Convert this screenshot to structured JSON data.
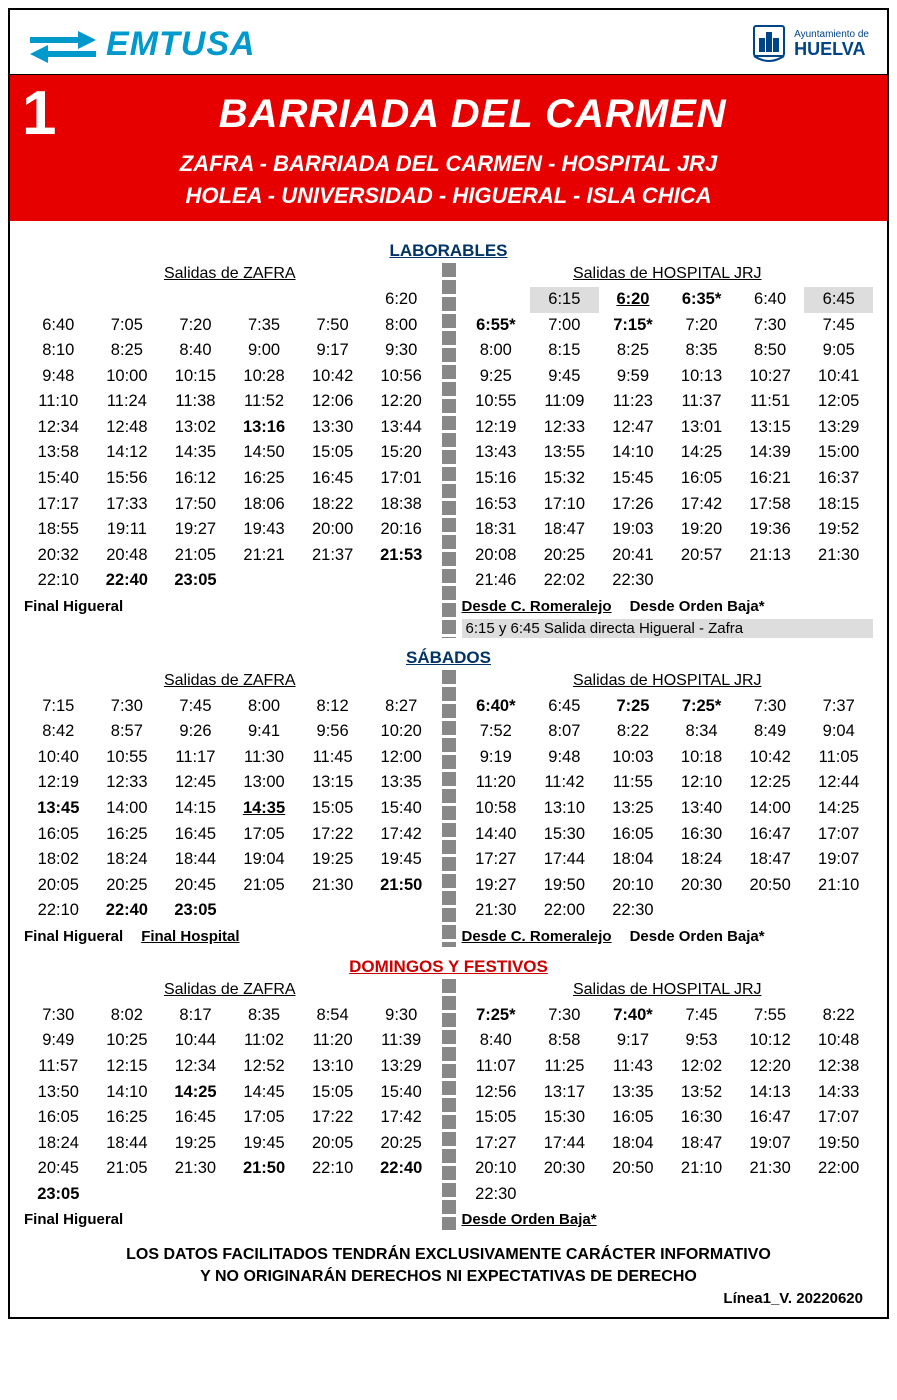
{
  "colors": {
    "brand_blue": "#0099cc",
    "red": "#e60000",
    "dark_blue": "#003366",
    "dark_red": "#cc0000",
    "highlight_gray": "#dddddd",
    "huelva_blue": "#004488"
  },
  "header": {
    "emtusa": "EMTUSA",
    "huelva_small": "Ayuntamiento de",
    "huelva_big": "HUELVA"
  },
  "redbar": {
    "line_number": "1",
    "title": "BARRIADA DEL CARMEN",
    "route1": "ZAFRA - BARRIADA DEL CARMEN - HOSPITAL JRJ",
    "route2": "HOLEA - UNIVERSIDAD - HIGUERAL - ISLA CHICA"
  },
  "sections": {
    "laborables": {
      "title": "LABORABLES",
      "left_head": "Salidas de ZAFRA",
      "right_head": "Salidas de HOSPITAL JRJ",
      "left_times": [
        {
          "t": ""
        },
        {
          "t": ""
        },
        {
          "t": ""
        },
        {
          "t": ""
        },
        {
          "t": ""
        },
        {
          "t": "6:20"
        },
        {
          "t": "6:40"
        },
        {
          "t": "7:05"
        },
        {
          "t": "7:20"
        },
        {
          "t": "7:35"
        },
        {
          "t": "7:50"
        },
        {
          "t": "8:00"
        },
        {
          "t": "8:10"
        },
        {
          "t": "8:25"
        },
        {
          "t": "8:40"
        },
        {
          "t": "9:00"
        },
        {
          "t": "9:17"
        },
        {
          "t": "9:30"
        },
        {
          "t": "9:48"
        },
        {
          "t": "10:00"
        },
        {
          "t": "10:15"
        },
        {
          "t": "10:28"
        },
        {
          "t": "10:42"
        },
        {
          "t": "10:56"
        },
        {
          "t": "11:10"
        },
        {
          "t": "11:24"
        },
        {
          "t": "11:38"
        },
        {
          "t": "11:52"
        },
        {
          "t": "12:06"
        },
        {
          "t": "12:20"
        },
        {
          "t": "12:34"
        },
        {
          "t": "12:48"
        },
        {
          "t": "13:02"
        },
        {
          "t": "13:16",
          "b": true
        },
        {
          "t": "13:30"
        },
        {
          "t": "13:44"
        },
        {
          "t": "13:58"
        },
        {
          "t": "14:12"
        },
        {
          "t": "14:35"
        },
        {
          "t": "14:50"
        },
        {
          "t": "15:05"
        },
        {
          "t": "15:20"
        },
        {
          "t": "15:40"
        },
        {
          "t": "15:56"
        },
        {
          "t": "16:12"
        },
        {
          "t": "16:25"
        },
        {
          "t": "16:45"
        },
        {
          "t": "17:01"
        },
        {
          "t": "17:17"
        },
        {
          "t": "17:33"
        },
        {
          "t": "17:50"
        },
        {
          "t": "18:06"
        },
        {
          "t": "18:22"
        },
        {
          "t": "18:38"
        },
        {
          "t": "18:55"
        },
        {
          "t": "19:11"
        },
        {
          "t": "19:27"
        },
        {
          "t": "19:43"
        },
        {
          "t": "20:00"
        },
        {
          "t": "20:16"
        },
        {
          "t": "20:32"
        },
        {
          "t": "20:48"
        },
        {
          "t": "21:05"
        },
        {
          "t": "21:21"
        },
        {
          "t": "21:37"
        },
        {
          "t": "21:53",
          "b": true
        },
        {
          "t": "22:10"
        },
        {
          "t": "22:40",
          "b": true
        },
        {
          "t": "23:05",
          "b": true
        },
        {
          "t": ""
        },
        {
          "t": ""
        },
        {
          "t": ""
        }
      ],
      "left_notes": [
        {
          "text": "Final Higueral",
          "u": false,
          "b": true
        }
      ],
      "right_times": [
        {
          "t": ""
        },
        {
          "t": "6:15",
          "hl": true
        },
        {
          "t": "6:20",
          "b": true,
          "u": true
        },
        {
          "t": "6:35*",
          "b": true
        },
        {
          "t": "6:40"
        },
        {
          "t": "6:45",
          "hl": true
        },
        {
          "t": "6:55*",
          "b": true
        },
        {
          "t": "7:00"
        },
        {
          "t": "7:15*",
          "b": true
        },
        {
          "t": "7:20"
        },
        {
          "t": "7:30"
        },
        {
          "t": "7:45"
        },
        {
          "t": "8:00"
        },
        {
          "t": "8:15"
        },
        {
          "t": "8:25"
        },
        {
          "t": "8:35"
        },
        {
          "t": "8:50"
        },
        {
          "t": "9:05"
        },
        {
          "t": "9:25"
        },
        {
          "t": "9:45"
        },
        {
          "t": "9:59"
        },
        {
          "t": "10:13"
        },
        {
          "t": "10:27"
        },
        {
          "t": "10:41"
        },
        {
          "t": "10:55"
        },
        {
          "t": "11:09"
        },
        {
          "t": "11:23"
        },
        {
          "t": "11:37"
        },
        {
          "t": "11:51"
        },
        {
          "t": "12:05"
        },
        {
          "t": "12:19"
        },
        {
          "t": "12:33"
        },
        {
          "t": "12:47"
        },
        {
          "t": "13:01"
        },
        {
          "t": "13:15"
        },
        {
          "t": "13:29"
        },
        {
          "t": "13:43"
        },
        {
          "t": "13:55"
        },
        {
          "t": "14:10"
        },
        {
          "t": "14:25"
        },
        {
          "t": "14:39"
        },
        {
          "t": "15:00"
        },
        {
          "t": "15:16"
        },
        {
          "t": "15:32"
        },
        {
          "t": "15:45"
        },
        {
          "t": "16:05"
        },
        {
          "t": "16:21"
        },
        {
          "t": "16:37"
        },
        {
          "t": "16:53"
        },
        {
          "t": "17:10"
        },
        {
          "t": "17:26"
        },
        {
          "t": "17:42"
        },
        {
          "t": "17:58"
        },
        {
          "t": "18:15"
        },
        {
          "t": "18:31"
        },
        {
          "t": "18:47"
        },
        {
          "t": "19:03"
        },
        {
          "t": "19:20"
        },
        {
          "t": "19:36"
        },
        {
          "t": "19:52"
        },
        {
          "t": "20:08"
        },
        {
          "t": "20:25"
        },
        {
          "t": "20:41"
        },
        {
          "t": "20:57"
        },
        {
          "t": "21:13"
        },
        {
          "t": "21:30"
        },
        {
          "t": "21:46"
        },
        {
          "t": "22:02"
        },
        {
          "t": "22:30"
        },
        {
          "t": ""
        },
        {
          "t": ""
        },
        {
          "t": ""
        }
      ],
      "right_notes_row": [
        {
          "text": "Desde C. Romeralejo",
          "u": true,
          "b": true
        },
        {
          "text": "Desde Orden Baja*",
          "b": true
        }
      ],
      "right_noteblock": "6:15 y 6:45 Salida directa Higueral - Zafra"
    },
    "sabados": {
      "title": "SÁBADOS",
      "left_head": "Salidas de ZAFRA",
      "right_head": "Salidas de HOSPITAL JRJ",
      "left_times": [
        {
          "t": "7:15"
        },
        {
          "t": "7:30"
        },
        {
          "t": "7:45"
        },
        {
          "t": "8:00"
        },
        {
          "t": "8:12"
        },
        {
          "t": "8:27"
        },
        {
          "t": "8:42"
        },
        {
          "t": "8:57"
        },
        {
          "t": "9:26"
        },
        {
          "t": "9:41"
        },
        {
          "t": "9:56"
        },
        {
          "t": "10:20"
        },
        {
          "t": "10:40"
        },
        {
          "t": "10:55"
        },
        {
          "t": "11:17"
        },
        {
          "t": "11:30"
        },
        {
          "t": "11:45"
        },
        {
          "t": "12:00"
        },
        {
          "t": "12:19"
        },
        {
          "t": "12:33"
        },
        {
          "t": "12:45"
        },
        {
          "t": "13:00"
        },
        {
          "t": "13:15"
        },
        {
          "t": "13:35"
        },
        {
          "t": "13:45",
          "b": true
        },
        {
          "t": "14:00"
        },
        {
          "t": "14:15"
        },
        {
          "t": "14:35",
          "b": true,
          "u": true
        },
        {
          "t": "15:05"
        },
        {
          "t": "15:40"
        },
        {
          "t": "16:05"
        },
        {
          "t": "16:25"
        },
        {
          "t": "16:45"
        },
        {
          "t": "17:05"
        },
        {
          "t": "17:22"
        },
        {
          "t": "17:42"
        },
        {
          "t": "18:02"
        },
        {
          "t": "18:24"
        },
        {
          "t": "18:44"
        },
        {
          "t": "19:04"
        },
        {
          "t": "19:25"
        },
        {
          "t": "19:45"
        },
        {
          "t": "20:05"
        },
        {
          "t": "20:25"
        },
        {
          "t": "20:45"
        },
        {
          "t": "21:05"
        },
        {
          "t": "21:30"
        },
        {
          "t": "21:50",
          "b": true
        },
        {
          "t": "22:10"
        },
        {
          "t": "22:40",
          "b": true
        },
        {
          "t": "23:05",
          "b": true
        },
        {
          "t": ""
        },
        {
          "t": ""
        },
        {
          "t": ""
        }
      ],
      "left_notes_row": [
        {
          "text": "Final Higueral",
          "b": true
        },
        {
          "text": "Final Hospital",
          "u": true,
          "b": true
        }
      ],
      "right_times": [
        {
          "t": "6:40*",
          "b": true
        },
        {
          "t": "6:45"
        },
        {
          "t": "7:25",
          "b": true
        },
        {
          "t": "7:25*",
          "b": true
        },
        {
          "t": "7:30"
        },
        {
          "t": "7:37"
        },
        {
          "t": "7:52"
        },
        {
          "t": "8:07"
        },
        {
          "t": "8:22"
        },
        {
          "t": "8:34"
        },
        {
          "t": "8:49"
        },
        {
          "t": "9:04"
        },
        {
          "t": "9:19"
        },
        {
          "t": "9:48"
        },
        {
          "t": "10:03"
        },
        {
          "t": "10:18"
        },
        {
          "t": "10:42"
        },
        {
          "t": "11:05"
        },
        {
          "t": "11:20"
        },
        {
          "t": "11:42"
        },
        {
          "t": "11:55"
        },
        {
          "t": "12:10"
        },
        {
          "t": "12:25"
        },
        {
          "t": "12:44"
        },
        {
          "t": "10:58"
        },
        {
          "t": "13:10"
        },
        {
          "t": "13:25"
        },
        {
          "t": "13:40"
        },
        {
          "t": "14:00"
        },
        {
          "t": "14:25"
        },
        {
          "t": "14:40"
        },
        {
          "t": "15:30"
        },
        {
          "t": "16:05"
        },
        {
          "t": "16:30"
        },
        {
          "t": "16:47"
        },
        {
          "t": "17:07"
        },
        {
          "t": "17:27"
        },
        {
          "t": "17:44"
        },
        {
          "t": "18:04"
        },
        {
          "t": "18:24"
        },
        {
          "t": "18:47"
        },
        {
          "t": "19:07"
        },
        {
          "t": "19:27"
        },
        {
          "t": "19:50"
        },
        {
          "t": "20:10"
        },
        {
          "t": "20:30"
        },
        {
          "t": "20:50"
        },
        {
          "t": "21:10"
        },
        {
          "t": "21:30"
        },
        {
          "t": "22:00"
        },
        {
          "t": "22:30"
        },
        {
          "t": ""
        },
        {
          "t": ""
        },
        {
          "t": ""
        }
      ],
      "right_notes_row": [
        {
          "text": "Desde C. Romeralejo",
          "u": true,
          "b": true
        },
        {
          "text": "Desde Orden Baja*",
          "b": true
        }
      ]
    },
    "domingos": {
      "title": "DOMINGOS Y FESTIVOS",
      "left_head": "Salidas de ZAFRA",
      "right_head": "Salidas de HOSPITAL JRJ",
      "left_times": [
        {
          "t": "7:30"
        },
        {
          "t": "8:02"
        },
        {
          "t": "8:17"
        },
        {
          "t": "8:35"
        },
        {
          "t": "8:54"
        },
        {
          "t": "9:30"
        },
        {
          "t": "9:49"
        },
        {
          "t": "10:25"
        },
        {
          "t": "10:44"
        },
        {
          "t": "11:02"
        },
        {
          "t": "11:20"
        },
        {
          "t": "11:39"
        },
        {
          "t": "11:57"
        },
        {
          "t": "12:15"
        },
        {
          "t": "12:34"
        },
        {
          "t": "12:52"
        },
        {
          "t": "13:10"
        },
        {
          "t": "13:29"
        },
        {
          "t": "13:50"
        },
        {
          "t": "14:10"
        },
        {
          "t": "14:25",
          "b": true
        },
        {
          "t": "14:45"
        },
        {
          "t": "15:05"
        },
        {
          "t": "15:40"
        },
        {
          "t": "16:05"
        },
        {
          "t": "16:25"
        },
        {
          "t": "16:45"
        },
        {
          "t": "17:05"
        },
        {
          "t": "17:22"
        },
        {
          "t": "17:42"
        },
        {
          "t": "18:24"
        },
        {
          "t": "18:44"
        },
        {
          "t": "19:25"
        },
        {
          "t": "19:45"
        },
        {
          "t": "20:05"
        },
        {
          "t": "20:25"
        },
        {
          "t": "20:45"
        },
        {
          "t": "21:05"
        },
        {
          "t": "21:30"
        },
        {
          "t": "21:50",
          "b": true
        },
        {
          "t": "22:10"
        },
        {
          "t": "22:40",
          "b": true
        },
        {
          "t": "23:05",
          "b": true
        },
        {
          "t": ""
        },
        {
          "t": ""
        },
        {
          "t": ""
        },
        {
          "t": ""
        },
        {
          "t": ""
        }
      ],
      "left_notes": [
        {
          "text": "Final Higueral",
          "b": true
        }
      ],
      "right_times": [
        {
          "t": "7:25*",
          "b": true
        },
        {
          "t": "7:30"
        },
        {
          "t": "7:40*",
          "b": true
        },
        {
          "t": "7:45"
        },
        {
          "t": "7:55"
        },
        {
          "t": "8:22"
        },
        {
          "t": "8:40"
        },
        {
          "t": "8:58"
        },
        {
          "t": "9:17"
        },
        {
          "t": "9:53"
        },
        {
          "t": "10:12"
        },
        {
          "t": "10:48"
        },
        {
          "t": "11:07"
        },
        {
          "t": "11:25"
        },
        {
          "t": "11:43"
        },
        {
          "t": "12:02"
        },
        {
          "t": "12:20"
        },
        {
          "t": "12:38"
        },
        {
          "t": "12:56"
        },
        {
          "t": "13:17"
        },
        {
          "t": "13:35"
        },
        {
          "t": "13:52"
        },
        {
          "t": "14:13"
        },
        {
          "t": "14:33"
        },
        {
          "t": "15:05"
        },
        {
          "t": "15:30"
        },
        {
          "t": "16:05"
        },
        {
          "t": "16:30"
        },
        {
          "t": "16:47"
        },
        {
          "t": "17:07"
        },
        {
          "t": "17:27"
        },
        {
          "t": "17:44"
        },
        {
          "t": "18:04"
        },
        {
          "t": "18:47"
        },
        {
          "t": "19:07"
        },
        {
          "t": "19:50"
        },
        {
          "t": "20:10"
        },
        {
          "t": "20:30"
        },
        {
          "t": "20:50"
        },
        {
          "t": "21:10"
        },
        {
          "t": "21:30"
        },
        {
          "t": "22:00"
        },
        {
          "t": "22:30"
        },
        {
          "t": ""
        },
        {
          "t": ""
        },
        {
          "t": ""
        },
        {
          "t": ""
        },
        {
          "t": ""
        }
      ],
      "right_notes": [
        {
          "text": "Desde Orden Baja*",
          "u": true,
          "b": true
        }
      ]
    }
  },
  "footer": {
    "line1": "LOS DATOS FACILITADOS TENDRÁN EXCLUSIVAMENTE CARÁCTER INFORMATIVO",
    "line2": "Y NO ORIGINARÁN DERECHOS NI EXPECTATIVAS DE DERECHO",
    "version": "Línea1_V. 20220620"
  }
}
